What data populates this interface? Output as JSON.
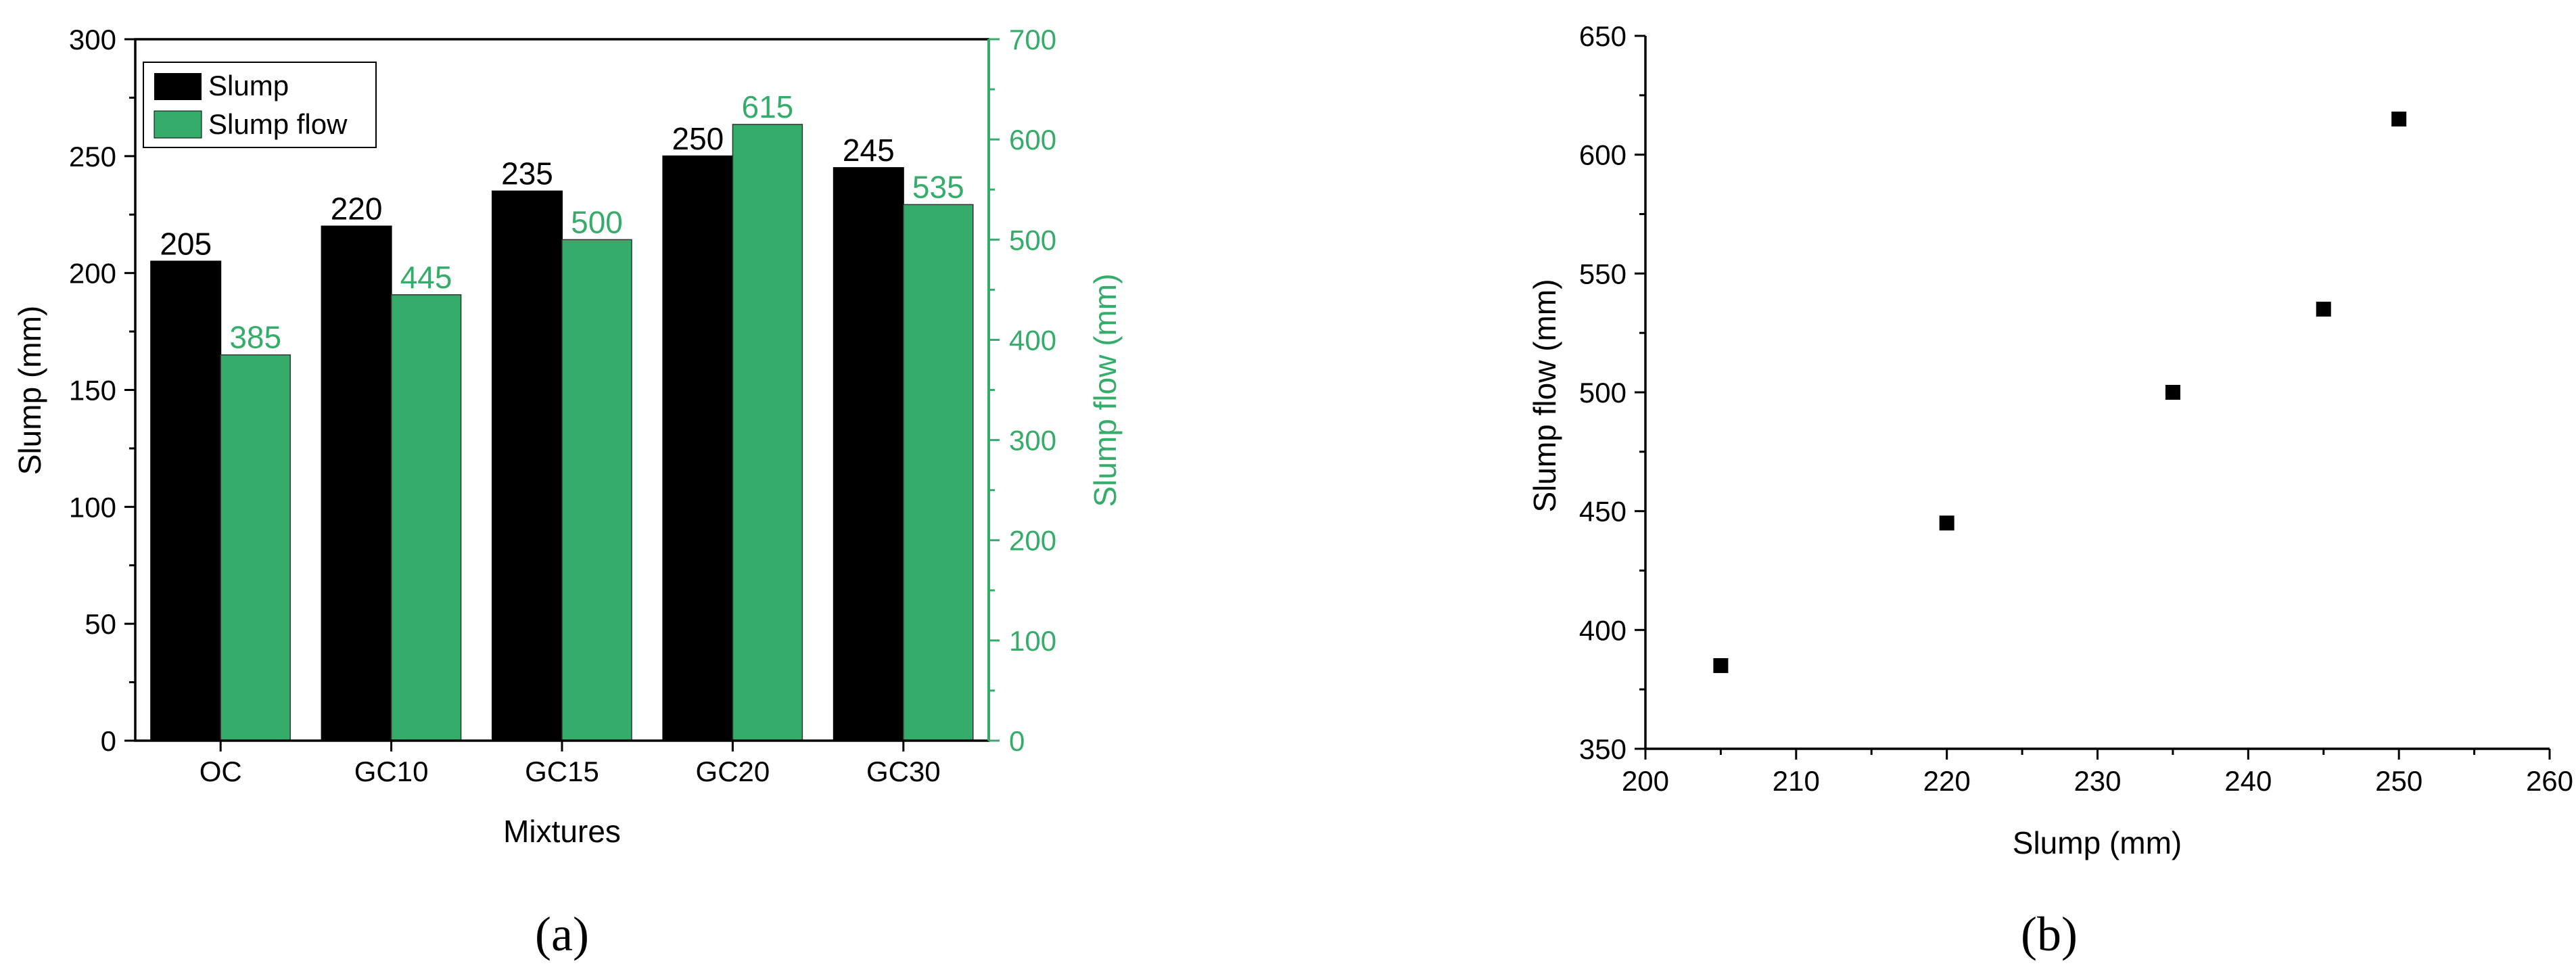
{
  "colors": {
    "slump": "#000000",
    "slump_flow": "#35AC6A",
    "axis": "#000000"
  },
  "chart_data": [
    {
      "type": "bar",
      "panel_label": "(a)",
      "categories": [
        "OC",
        "GC10",
        "GC15",
        "GC20",
        "GC30"
      ],
      "xlabel": "Mixtures",
      "ylabel": "Slump (mm)",
      "ylabel_right": "Slump flow (mm)",
      "ylim": [
        0,
        300
      ],
      "ylim_right": [
        0,
        700
      ],
      "yticks": [
        "0",
        "50",
        "100",
        "150",
        "200",
        "250",
        "300"
      ],
      "yticks_right": [
        "0",
        "100",
        "200",
        "300",
        "400",
        "500",
        "600",
        "700"
      ],
      "legend_position": "top-left",
      "series": [
        {
          "name": "Slump",
          "axis": "left",
          "values": [
            205,
            220,
            235,
            250,
            245
          ],
          "labels": [
            "205",
            "220",
            "235",
            "250",
            "245"
          ]
        },
        {
          "name": "Slump flow",
          "axis": "right",
          "values": [
            385,
            445,
            500,
            615,
            535
          ],
          "labels": [
            "385",
            "445",
            "500",
            "615",
            "535"
          ]
        }
      ]
    },
    {
      "type": "scatter",
      "panel_label": "(b)",
      "xlabel": "Slump (mm)",
      "ylabel": "Slump flow (mm)",
      "xlim": [
        200,
        260
      ],
      "ylim": [
        350,
        650
      ],
      "xticks": [
        "200",
        "210",
        "220",
        "230",
        "240",
        "250",
        "260"
      ],
      "yticks": [
        "350",
        "400",
        "450",
        "500",
        "550",
        "600",
        "650"
      ],
      "points": [
        {
          "x": 205,
          "y": 385
        },
        {
          "x": 220,
          "y": 445
        },
        {
          "x": 235,
          "y": 500
        },
        {
          "x": 245,
          "y": 535
        },
        {
          "x": 250,
          "y": 615
        }
      ]
    }
  ]
}
